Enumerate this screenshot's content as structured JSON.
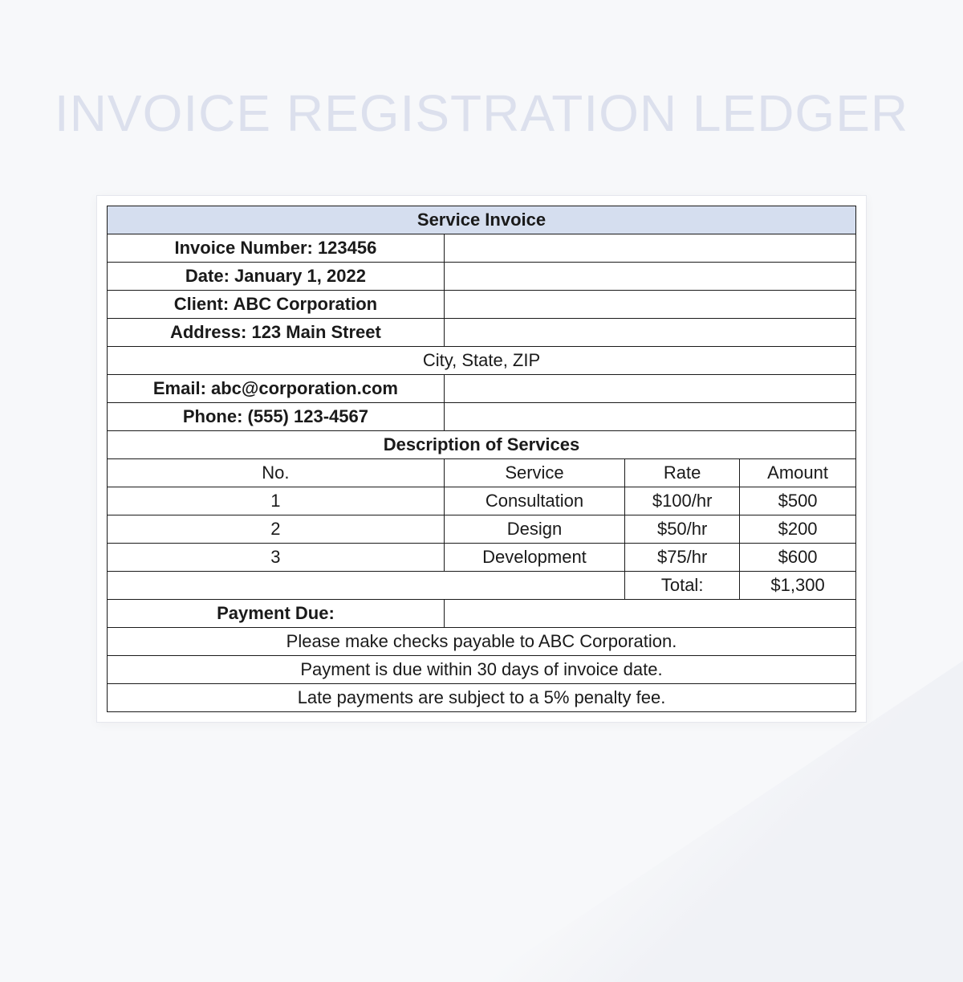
{
  "page_title": "INVOICE REGISTRATION LEDGER",
  "invoice": {
    "header": "Service Invoice",
    "invoice_number_label": "Invoice Number: 123456",
    "date_label": "Date: January 1, 2022",
    "client_label": "Client: ABC Corporation",
    "address_label": "Address: 123 Main Street",
    "city_state_zip": "City, State, ZIP",
    "email_label": "Email: abc@corporation.com",
    "phone_label": "Phone: (555) 123-4567",
    "services_header": "Description of Services",
    "columns": {
      "no": "No.",
      "service": "Service",
      "rate": "Rate",
      "amount": "Amount"
    },
    "rows": [
      {
        "no": "1",
        "service": "Consultation",
        "rate": "$100/hr",
        "amount": "$500"
      },
      {
        "no": "2",
        "service": "Design",
        "rate": "$50/hr",
        "amount": "$200"
      },
      {
        "no": "3",
        "service": "Development",
        "rate": "$75/hr",
        "amount": "$600"
      }
    ],
    "total_label": "Total:",
    "total_amount": "$1,300",
    "payment_due_label": "Payment Due:",
    "notes": [
      "Please make checks payable to ABC Corporation.",
      "Payment is due within 30 days of invoice date.",
      "Late payments are subject to a 5% penalty fee."
    ]
  },
  "styles": {
    "background_color": "#f7f8fa",
    "title_color": "#dce0ed",
    "title_fontsize": 64,
    "header_bg": "#d5deef",
    "border_color": "#1a1a1a",
    "text_color": "#1a1a1a",
    "cell_fontsize": 22,
    "container_bg": "#ffffff",
    "container_border": "#e5e7ed"
  }
}
